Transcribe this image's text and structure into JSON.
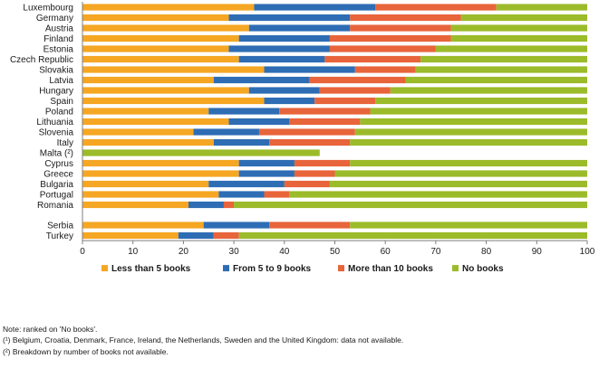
{
  "chart_data": {
    "type": "bar",
    "orientation": "horizontal",
    "stacked": true,
    "categories": [
      "Luxembourg",
      "Germany",
      "Austria",
      "Finland",
      "Estonia",
      "Czech Republic",
      "Slovakia",
      "Latvia",
      "Hungary",
      "Spain",
      "Poland",
      "Lithuania",
      "Slovenia",
      "Italy",
      "Malta (²)",
      "Cyprus",
      "Greece",
      "Bulgaria",
      "Portugal",
      "Romania",
      "Serbia",
      "Turkey"
    ],
    "gap_after": [
      "Romania"
    ],
    "series": [
      {
        "name": "Less than 5 books",
        "color": "#f5a623",
        "values": [
          34,
          29,
          33,
          31,
          29,
          31,
          36,
          26,
          33,
          36,
          25,
          29,
          22,
          26,
          null,
          31,
          31,
          25,
          27,
          21,
          24,
          19
        ]
      },
      {
        "name": "From 5 to 9 books",
        "color": "#2e6db4",
        "values": [
          24,
          24,
          20,
          18,
          20,
          17,
          18,
          19,
          14,
          10,
          14,
          12,
          13,
          11,
          null,
          11,
          11,
          15,
          9,
          7,
          13,
          7
        ]
      },
      {
        "name": "More than 10 books",
        "color": "#e8643b",
        "values": [
          24,
          22,
          20,
          24,
          21,
          19,
          12,
          19,
          14,
          12,
          18,
          14,
          19,
          16,
          null,
          11,
          8,
          9,
          5,
          2,
          16,
          5
        ]
      },
      {
        "name": "No books",
        "color": "#9bbb2a",
        "values": [
          18,
          25,
          27,
          27,
          30,
          33,
          34,
          36,
          39,
          42,
          43,
          45,
          46,
          47,
          47,
          47,
          50,
          51,
          59,
          70,
          47,
          69
        ]
      }
    ],
    "xlim": [
      0,
      100
    ],
    "xticks": [
      0,
      10,
      20,
      30,
      40,
      50,
      60,
      70,
      80,
      90,
      100
    ],
    "grid": false,
    "legend_position": "bottom"
  },
  "notes": [
    "Note: ranked on 'No books'.",
    "(¹) Belgium, Croatia, Denmark, France, Ireland, the Netherlands, Sweden and the United Kingdom: data not available.",
    "(²) Breakdown by number of books not available."
  ]
}
